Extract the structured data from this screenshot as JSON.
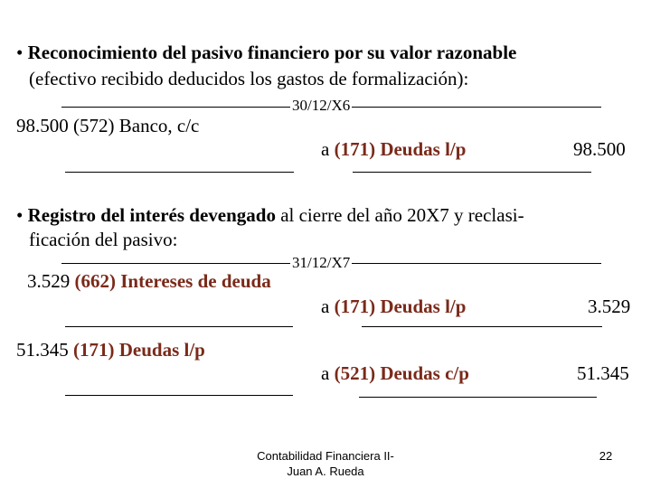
{
  "section1": {
    "bullet": "•",
    "title_bold": "Reconocimiento del pasivo financiero por su valor razonable",
    "subtitle": "(efectivo recibido deducidos los gastos de formalización):"
  },
  "entry1": {
    "date": "30/12/X6",
    "debit_amount": "98.500",
    "debit_account": "(572) Banco, c/c",
    "credit_prefix": "a",
    "credit_account": "(171) Deudas l/p",
    "credit_amount": "98.500"
  },
  "section2": {
    "bullet": "•",
    "title_bold": "Registro del interés devengado",
    "title_rest": " al cierre del año 20X7 y reclasi-",
    "line2": "ficación del pasivo:"
  },
  "entry2": {
    "date": "31/12/X7",
    "debit_amount": "3.529",
    "debit_account": "(662) Intereses de deuda",
    "credit_prefix": "a",
    "credit_account": "(171) Deudas l/p",
    "credit_amount": "3.529"
  },
  "entry3": {
    "debit_amount": "51.345",
    "debit_account": "(171) Deudas l/p",
    "credit_prefix": "a",
    "credit_account": "(521) Deudas c/p",
    "credit_amount": "51.345"
  },
  "footer": {
    "line1": "Contabilidad Financiera II-",
    "line2": "Juan A. Rueda",
    "page_number": "22"
  },
  "colors": {
    "account_brown": "#7a2a1a"
  }
}
